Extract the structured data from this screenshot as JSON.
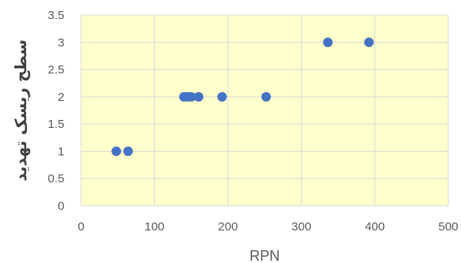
{
  "chart_data": {
    "type": "scatter",
    "xlabel": "RPN",
    "ylabel": "سطح ریسک تهدید",
    "xlim": [
      0,
      500
    ],
    "ylim": [
      0,
      3.5
    ],
    "x_ticks": [
      "0",
      "100",
      "200",
      "300",
      "400",
      "500"
    ],
    "y_ticks": [
      "0",
      "0.5",
      "1",
      "1.5",
      "2",
      "2.5",
      "3",
      "3.5"
    ],
    "grid": true,
    "legend": "none",
    "series": [
      {
        "points": [
          {
            "x": 48,
            "y": 1
          },
          {
            "x": 64,
            "y": 1
          },
          {
            "x": 140,
            "y": 2
          },
          {
            "x": 145,
            "y": 2
          },
          {
            "x": 150,
            "y": 2
          },
          {
            "x": 160,
            "y": 2
          },
          {
            "x": 192,
            "y": 2
          },
          {
            "x": 252,
            "y": 2
          },
          {
            "x": 336,
            "y": 3
          },
          {
            "x": 392,
            "y": 3
          }
        ]
      }
    ],
    "colors": {
      "plot_background": "#FFFFCC",
      "marker": "#4472C4",
      "gridline": "#D9D9D9"
    }
  }
}
